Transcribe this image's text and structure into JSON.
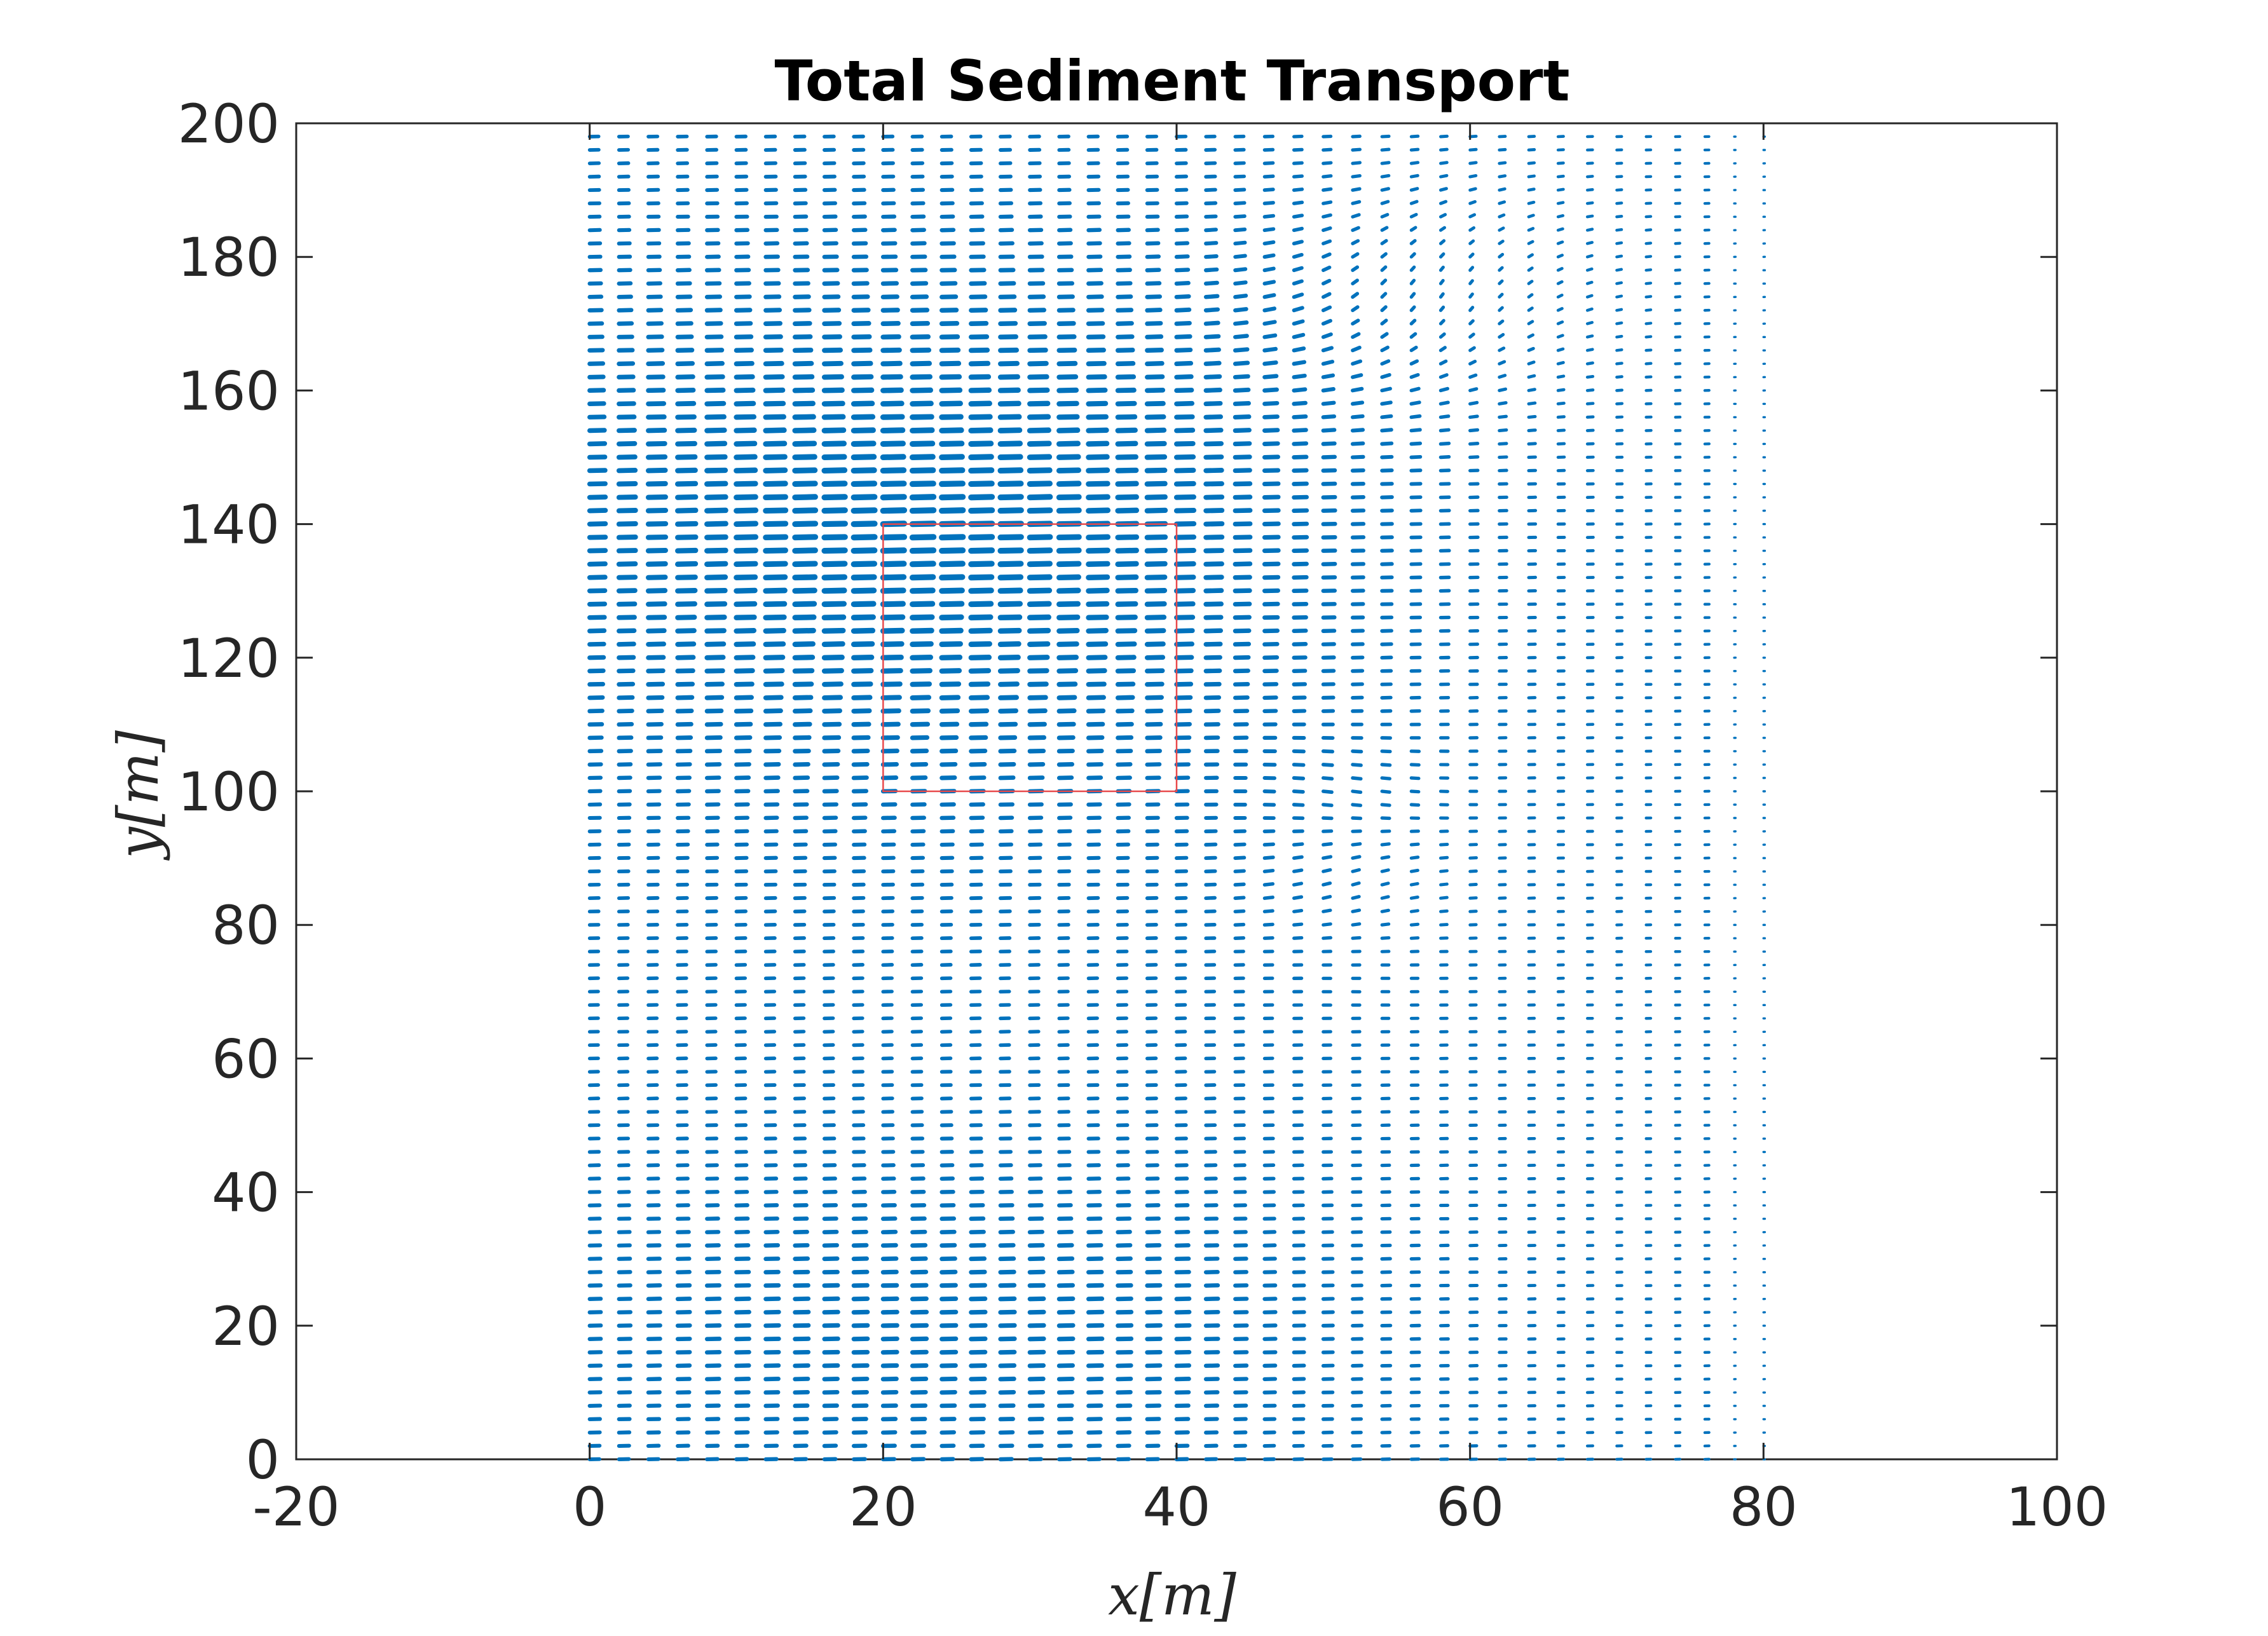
{
  "chart_data": {
    "type": "quiver",
    "title": "Total Sediment Transport",
    "xlabel": "x[m]",
    "ylabel": "y[m]",
    "xlim": [
      -20,
      100
    ],
    "ylim": [
      0,
      200
    ],
    "xticks": [
      -20,
      0,
      20,
      40,
      60,
      80,
      100
    ],
    "yticks": [
      0,
      20,
      40,
      60,
      80,
      100,
      120,
      140,
      160,
      180,
      200
    ],
    "xtick_labels": [
      "-20",
      "0",
      "20",
      "40",
      "60",
      "80",
      "100"
    ],
    "ytick_labels": [
      "0",
      "20",
      "40",
      "60",
      "80",
      "100",
      "120",
      "140",
      "160",
      "180",
      "200"
    ],
    "grid": false,
    "legend": "none",
    "vector_field": {
      "x_range": [
        0,
        80
      ],
      "y_range": [
        0,
        198
      ],
      "x_spacing": 2,
      "y_spacing": 2,
      "color": "#0072BD",
      "description_of_pattern": "Dense field of short vectors; strongest transport between x = 0 and 45 for y = 100 to 170, vectors bending toward +y near x = 50 to 65 at y = 160 to 190, weaker and sparser toward x = 80"
    },
    "highlight_box": {
      "x": [
        20,
        40
      ],
      "y": [
        100,
        140
      ],
      "color": "#E8484A"
    }
  }
}
